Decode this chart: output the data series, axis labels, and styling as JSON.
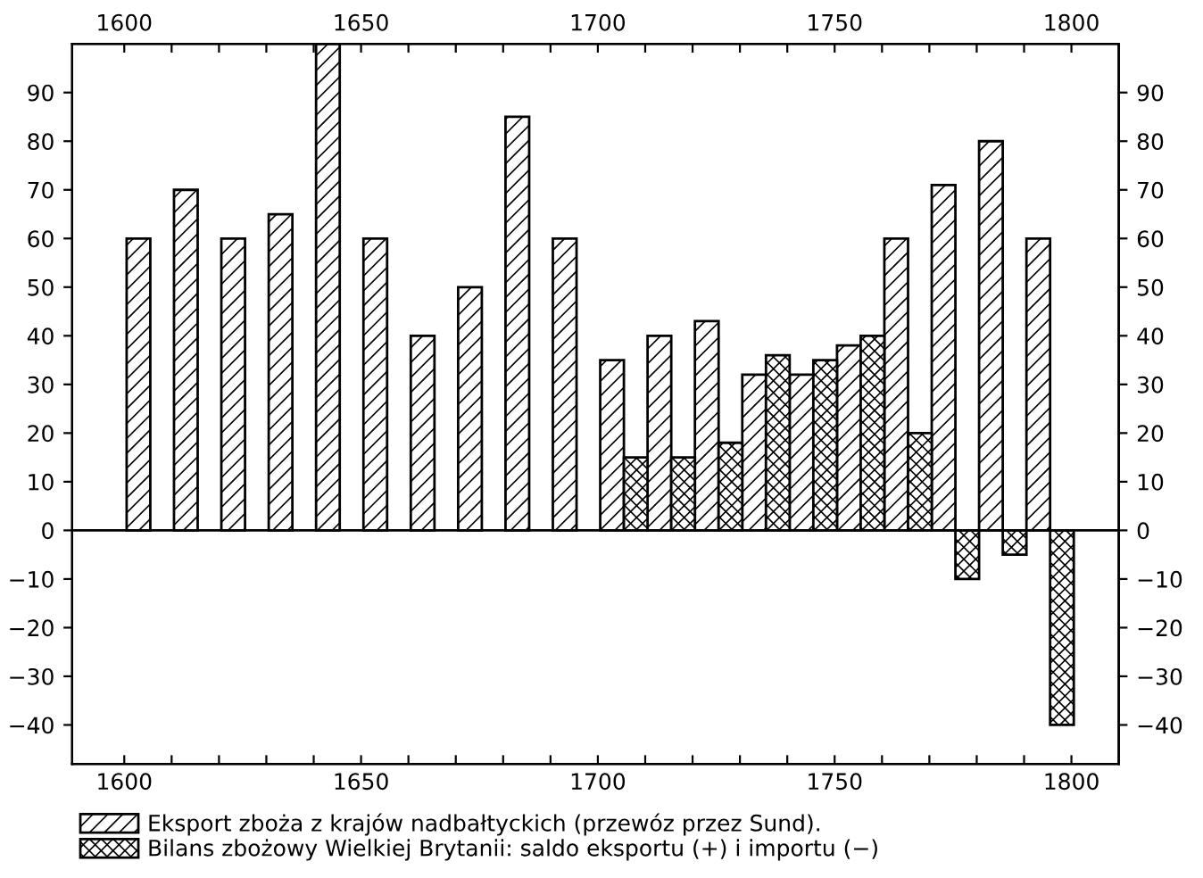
{
  "chart_data": {
    "type": "bar",
    "series": [
      {
        "name": "Eksport zboża z krajów nadbałtyckich (przewóz przez Sund).",
        "color": "#000000",
        "x": [
          1603,
          1613,
          1623,
          1633,
          1643,
          1653,
          1663,
          1673,
          1683,
          1693,
          1703,
          1713,
          1723,
          1733,
          1743,
          1753,
          1763,
          1773,
          1783,
          1793
        ],
        "values": [
          60,
          70,
          60,
          65,
          100,
          60,
          40,
          50,
          85,
          60,
          35,
          40,
          43,
          32,
          32,
          38,
          60,
          71,
          80,
          60
        ]
      },
      {
        "name": "Bilans zbożowy Wielkiej Brytanii: saldo eksportu (+) i importu (−)",
        "color": "#000000",
        "x": [
          1708,
          1718,
          1728,
          1738,
          1748,
          1758,
          1768,
          1778,
          1788,
          1798
        ],
        "values": [
          15,
          15,
          18,
          36,
          35,
          40,
          20,
          -10,
          -5,
          -40
        ]
      }
    ],
    "xlim": [
      1589,
      1810
    ],
    "xticks": [
      1600,
      {
        "value": 1610,
        "label": null
      },
      {
        "value": 1620,
        "label": null
      },
      {
        "value": 1630,
        "label": null
      },
      {
        "value": 1640,
        "label": null
      },
      1650,
      {
        "value": 1660,
        "label": null
      },
      {
        "value": 1670,
        "label": null
      },
      {
        "value": 1680,
        "label": null
      },
      {
        "value": 1690,
        "label": null
      },
      1700,
      {
        "value": 1710,
        "label": null
      },
      {
        "value": 1720,
        "label": null
      },
      {
        "value": 1730,
        "label": null
      },
      {
        "value": 1740,
        "label": null
      },
      1750,
      {
        "value": 1760,
        "label": null
      },
      {
        "value": 1770,
        "label": null
      },
      {
        "value": 1780,
        "label": null
      },
      {
        "value": 1790,
        "label": null
      },
      1800
    ],
    "x2lim": [
      1589,
      1810
    ],
    "x2ticks": [
      1600,
      {
        "value": 1610,
        "label": null
      },
      {
        "value": 1620,
        "label": null
      },
      {
        "value": 1630,
        "label": null
      },
      {
        "value": 1640,
        "label": null
      },
      1650,
      {
        "value": 1660,
        "label": null
      },
      {
        "value": 1670,
        "label": null
      },
      {
        "value": 1680,
        "label": null
      },
      {
        "value": 1690,
        "label": null
      },
      1700,
      {
        "value": 1710,
        "label": null
      },
      {
        "value": 1720,
        "label": null
      },
      {
        "value": 1730,
        "label": null
      },
      {
        "value": 1740,
        "label": null
      },
      1750,
      {
        "value": 1760,
        "label": null
      },
      {
        "value": 1770,
        "label": null
      },
      {
        "value": 1780,
        "label": null
      },
      {
        "value": 1790,
        "label": null
      },
      1800
    ],
    "ylim": [
      -48,
      100
    ],
    "yticks": [
      -40,
      -30,
      -20,
      -10,
      0,
      10,
      20,
      30,
      40,
      50,
      60,
      70,
      80,
      90
    ],
    "y2lim": [
      -48,
      100
    ],
    "y2ticks": [
      -40,
      -30,
      -20,
      -10,
      0,
      10,
      20,
      30,
      40,
      50,
      60,
      70,
      80,
      90
    ],
    "ref_lines": [
      {
        "axis": "y",
        "value": 0,
        "color": "#000000"
      }
    ],
    "legend": "bottom left",
    "grid": false
  }
}
